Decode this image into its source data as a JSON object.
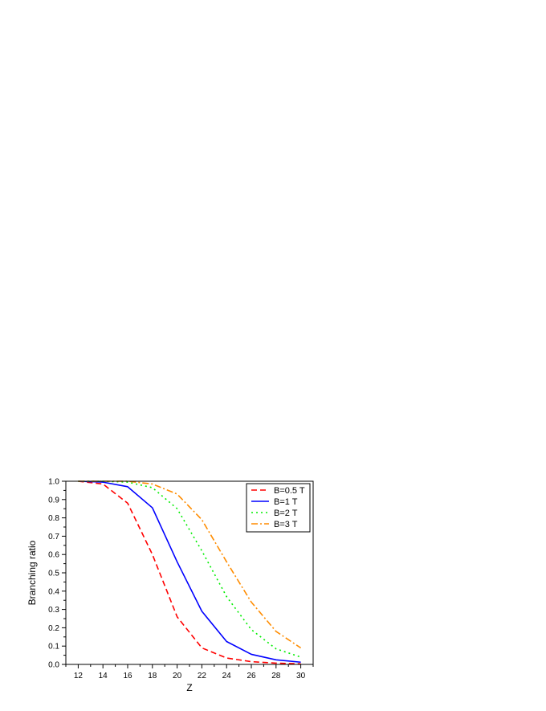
{
  "chart_data": {
    "type": "line",
    "title": "",
    "xlabel": "Z",
    "ylabel": "Branching ratio",
    "xlim": [
      11,
      31
    ],
    "ylim": [
      0.0,
      1.0
    ],
    "x_ticks": [
      12,
      14,
      16,
      18,
      20,
      22,
      24,
      26,
      28,
      30
    ],
    "x_tick_labels": [
      "12",
      "14",
      "16",
      "18",
      "20",
      "22",
      "24",
      "26",
      "28",
      "30"
    ],
    "y_ticks": [
      0.0,
      0.1,
      0.2,
      0.3,
      0.4,
      0.5,
      0.6,
      0.7,
      0.8,
      0.9,
      1.0
    ],
    "y_tick_labels": [
      "0.0",
      "0.1",
      "0.2",
      "0.3",
      "0.4",
      "0.5",
      "0.6",
      "0.7",
      "0.8",
      "0.9",
      "1.0"
    ],
    "grid": false,
    "legend_position": "top-right",
    "x": [
      12,
      14,
      16,
      18,
      20,
      22,
      24,
      26,
      28,
      30
    ],
    "series": [
      {
        "name": "B=0.5 T",
        "color": "#ff0000",
        "dash": "dashed",
        "values": [
          1.0,
          0.985,
          0.88,
          0.6,
          0.26,
          0.09,
          0.035,
          0.015,
          0.007,
          0.003
        ]
      },
      {
        "name": "B=1 T",
        "color": "#0000ff",
        "dash": "solid",
        "values": [
          1.0,
          0.995,
          0.97,
          0.855,
          0.56,
          0.29,
          0.125,
          0.055,
          0.025,
          0.012
        ]
      },
      {
        "name": "B=2 T",
        "color": "#00ee00",
        "dash": "dotted",
        "values": [
          1.0,
          1.0,
          0.995,
          0.965,
          0.85,
          0.62,
          0.37,
          0.19,
          0.085,
          0.04
        ]
      },
      {
        "name": "B=3 T",
        "color": "#ff8c00",
        "dash": "dashdot",
        "values": [
          1.0,
          1.0,
          1.0,
          0.985,
          0.93,
          0.79,
          0.56,
          0.34,
          0.18,
          0.09
        ]
      }
    ]
  }
}
